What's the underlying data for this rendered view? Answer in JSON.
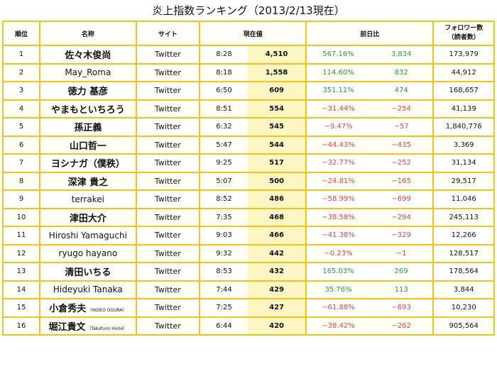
{
  "title": "炎上指数ランキング（2013/2/13現在）",
  "headers": {
    "rank": "順位",
    "name": "名称",
    "site": "サイト",
    "current": "現在値",
    "prev_day": "前日比",
    "followers_line1": "フォロワー数",
    "followers_line2": "（読者数）"
  },
  "colors": {
    "border": "#f3c21c",
    "current_value_bg": "#fdf6c3",
    "positive": "#2a9d3b",
    "negative": "#e34444"
  },
  "chart_data": {
    "type": "table",
    "title": "炎上指数ランキング（2013/2/13現在）",
    "columns": [
      "順位",
      "名称",
      "サイト",
      "現在値 (時刻)",
      "現在値",
      "前日比 (%)",
      "前日比",
      "フォロワー数（読者数）"
    ],
    "rows": [
      {
        "rank": "1",
        "name": "佐々木俊尚",
        "sub": "",
        "site": "Twitter",
        "time": "8:28",
        "value": "4,510",
        "pct": "567.16%",
        "diff": "3,834",
        "followers": "173,979",
        "sign": "pos"
      },
      {
        "rank": "2",
        "name": "May_Roma",
        "sub": "",
        "site": "Twitter",
        "time": "8:18",
        "value": "1,558",
        "pct": "114.60%",
        "diff": "832",
        "followers": "44,912",
        "sign": "pos"
      },
      {
        "rank": "3",
        "name": "徳力 基彦",
        "sub": "",
        "site": "Twitter",
        "time": "6:50",
        "value": "609",
        "pct": "351.11%",
        "diff": "474",
        "followers": "168,657",
        "sign": "pos"
      },
      {
        "rank": "4",
        "name": "やまもといちろう",
        "sub": "",
        "site": "Twitter",
        "time": "8:51",
        "value": "554",
        "pct": "−31.44%",
        "diff": "−254",
        "followers": "41,139",
        "sign": "neg"
      },
      {
        "rank": "5",
        "name": "孫正義",
        "sub": "",
        "site": "Twitter",
        "time": "6:32",
        "value": "545",
        "pct": "−9.47%",
        "diff": "−57",
        "followers": "1,840,776",
        "sign": "neg"
      },
      {
        "rank": "6",
        "name": "山口哲一",
        "sub": "",
        "site": "Twitter",
        "time": "5:47",
        "value": "544",
        "pct": "−44.43%",
        "diff": "−435",
        "followers": "3,369",
        "sign": "neg"
      },
      {
        "rank": "7",
        "name": "ヨシナガ（僕秩）",
        "sub": "",
        "site": "Twitter",
        "time": "9:25",
        "value": "517",
        "pct": "−32.77%",
        "diff": "−252",
        "followers": "31,134",
        "sign": "neg"
      },
      {
        "rank": "8",
        "name": "深津 貴之",
        "sub": "",
        "site": "Twitter",
        "time": "5:07",
        "value": "500",
        "pct": "−24.81%",
        "diff": "−165",
        "followers": "29,517",
        "sign": "neg"
      },
      {
        "rank": "9",
        "name": "terrakei",
        "sub": "",
        "site": "Twitter",
        "time": "8:52",
        "value": "486",
        "pct": "−58.99%",
        "diff": "−699",
        "followers": "11,046",
        "sign": "neg"
      },
      {
        "rank": "10",
        "name": "津田大介",
        "sub": "",
        "site": "Twitter",
        "time": "7:35",
        "value": "468",
        "pct": "−38.58%",
        "diff": "−294",
        "followers": "245,113",
        "sign": "neg"
      },
      {
        "rank": "11",
        "name": "Hiroshi Yamaguchi",
        "sub": "",
        "site": "Twitter",
        "time": "9:03",
        "value": "466",
        "pct": "−41.38%",
        "diff": "−329",
        "followers": "12,266",
        "sign": "neg"
      },
      {
        "rank": "12",
        "name": "ryugo hayano",
        "sub": "",
        "site": "Twitter",
        "time": "9:32",
        "value": "442",
        "pct": "−0.23%",
        "diff": "−1",
        "followers": "128,517",
        "sign": "neg"
      },
      {
        "rank": "13",
        "name": "清田いちる",
        "sub": "",
        "site": "Twitter",
        "time": "8:53",
        "value": "432",
        "pct": "165.03%",
        "diff": "269",
        "followers": "178,564",
        "sign": "pos"
      },
      {
        "rank": "14",
        "name": "Hideyuki Tanaka",
        "sub": "",
        "site": "Twitter",
        "time": "7:44",
        "value": "429",
        "pct": "35.76%",
        "diff": "113",
        "followers": "3,844",
        "sign": "pos"
      },
      {
        "rank": "15",
        "name": "小倉秀夫",
        "sub": "（HIDEO OGURA）",
        "site": "Twitter",
        "time": "7:25",
        "value": "427",
        "pct": "−61.88%",
        "diff": "−693",
        "followers": "10,230",
        "sign": "neg"
      },
      {
        "rank": "16",
        "name": "堀江貴文",
        "sub": "（Takafumi Horie）",
        "site": "Twitter",
        "time": "6:44",
        "value": "420",
        "pct": "−38.42%",
        "diff": "−262",
        "followers": "905,564",
        "sign": "neg"
      }
    ]
  }
}
